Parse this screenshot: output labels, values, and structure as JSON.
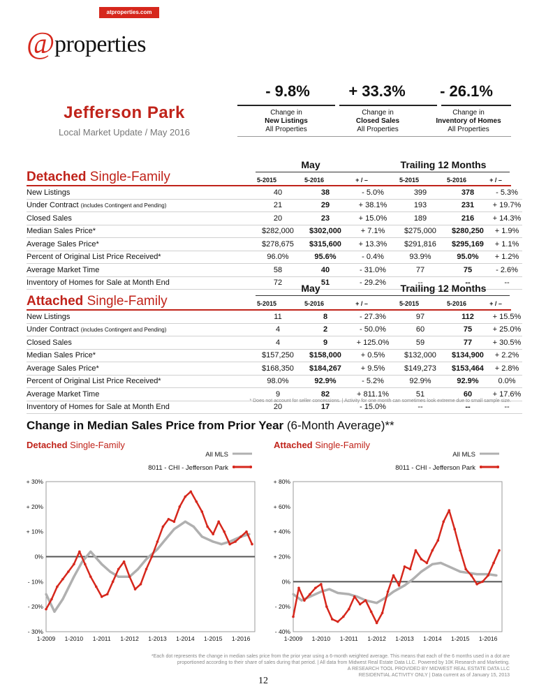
{
  "brand": {
    "tag": "atproperties.com",
    "logo_at": "@",
    "logo_word": "properties"
  },
  "area": {
    "name": "Jefferson Park",
    "subtitle": "Local Market Update / May 2016"
  },
  "headline_stats": [
    {
      "value": "- 9.8%",
      "line1": "Change in",
      "line2": "New Listings",
      "line3": "All Properties"
    },
    {
      "value": "+ 33.3%",
      "line1": "Change in",
      "line2": "Closed Sales",
      "line3": "All Properties"
    },
    {
      "value": "- 26.1%",
      "line1": "Change in",
      "line2": "Inventory of Homes",
      "line3": "All Properties"
    }
  ],
  "group_headers": {
    "month": "May",
    "trailing": "Trailing 12 Months"
  },
  "col_headers": [
    "5-2015",
    "5-2016",
    "+ / –",
    "5-2015",
    "5-2016",
    "+ / –"
  ],
  "detached": {
    "title_bold": "Detached",
    "title_rest": " Single-Family",
    "rows": [
      {
        "label": "New Listings",
        "small": "",
        "v": [
          "40",
          "38",
          "- 5.0%",
          "399",
          "378",
          "- 5.3%"
        ]
      },
      {
        "label": "Under Contract ",
        "small": "(includes Contingent and Pending)",
        "v": [
          "21",
          "29",
          "+ 38.1%",
          "193",
          "231",
          "+ 19.7%"
        ]
      },
      {
        "label": "Closed Sales",
        "small": "",
        "v": [
          "20",
          "23",
          "+ 15.0%",
          "189",
          "216",
          "+ 14.3%"
        ]
      },
      {
        "label": "Median Sales Price*",
        "small": "",
        "v": [
          "$282,000",
          "$302,000",
          "+ 7.1%",
          "$275,000",
          "$280,250",
          "+ 1.9%"
        ]
      },
      {
        "label": "Average Sales Price*",
        "small": "",
        "v": [
          "$278,675",
          "$315,600",
          "+ 13.3%",
          "$291,816",
          "$295,169",
          "+ 1.1%"
        ]
      },
      {
        "label": "Percent of Original List Price Received*",
        "small": "",
        "v": [
          "96.0%",
          "95.6%",
          "- 0.4%",
          "93.9%",
          "95.0%",
          "+ 1.2%"
        ]
      },
      {
        "label": "Average Market Time",
        "small": "",
        "v": [
          "58",
          "40",
          "- 31.0%",
          "77",
          "75",
          "- 2.6%"
        ]
      },
      {
        "label": "Inventory of Homes for Sale at Month End",
        "small": "",
        "v": [
          "72",
          "51",
          "- 29.2%",
          "--",
          "--",
          "--"
        ]
      }
    ]
  },
  "attached": {
    "title_bold": "Attached",
    "title_rest": " Single-Family",
    "rows": [
      {
        "label": "New Listings",
        "small": "",
        "v": [
          "11",
          "8",
          "- 27.3%",
          "97",
          "112",
          "+ 15.5%"
        ]
      },
      {
        "label": "Under Contract ",
        "small": "(includes Contingent and Pending)",
        "v": [
          "4",
          "2",
          "- 50.0%",
          "60",
          "75",
          "+ 25.0%"
        ]
      },
      {
        "label": "Closed Sales",
        "small": "",
        "v": [
          "4",
          "9",
          "+ 125.0%",
          "59",
          "77",
          "+ 30.5%"
        ]
      },
      {
        "label": "Median Sales Price*",
        "small": "",
        "v": [
          "$157,250",
          "$158,000",
          "+ 0.5%",
          "$132,000",
          "$134,900",
          "+ 2.2%"
        ]
      },
      {
        "label": "Average Sales Price*",
        "small": "",
        "v": [
          "$168,350",
          "$184,267",
          "+ 9.5%",
          "$149,273",
          "$153,464",
          "+ 2.8%"
        ]
      },
      {
        "label": "Percent of Original List Price Received*",
        "small": "",
        "v": [
          "98.0%",
          "92.9%",
          "- 5.2%",
          "92.9%",
          "92.9%",
          "0.0%"
        ]
      },
      {
        "label": "Average Market Time",
        "small": "",
        "v": [
          "9",
          "82",
          "+ 811.1%",
          "51",
          "60",
          "+ 17.6%"
        ]
      },
      {
        "label": "Inventory of Homes for Sale at Month End",
        "small": "",
        "v": [
          "20",
          "17",
          "- 15.0%",
          "--",
          "--",
          "--"
        ]
      }
    ]
  },
  "table_note": "* Does not account for seller concessions.  |  Activity for one month can sometimes look extreme due to small sample size.",
  "charts_section": {
    "title_bold": "Change in Median Sales Price from Prior Year",
    "title_rest": " (6-Month Average)**"
  },
  "chart_data": [
    {
      "type": "line",
      "title_bold": "Detached",
      "title_rest": " Single-Family",
      "x_ticks": [
        "1-2009",
        "1-2010",
        "1-2011",
        "1-2012",
        "1-2013",
        "1-2014",
        "1-2015",
        "1-2016"
      ],
      "y_ticks": [
        "+ 30%",
        "+ 20%",
        "+ 10%",
        "0%",
        "- 10%",
        "- 20%",
        "- 30%"
      ],
      "ylim": [
        -30,
        30
      ],
      "xlim": [
        2009.0,
        2016.5
      ],
      "legend": [
        "All MLS",
        "8011 - CHI - Jefferson Park"
      ],
      "colors": {
        "all_mls": "#b0b0b0",
        "area": "#d6271c"
      },
      "series": [
        {
          "name": "All MLS",
          "x": [
            2009.0,
            2009.3,
            2009.6,
            2010.0,
            2010.3,
            2010.6,
            2011.0,
            2011.3,
            2011.6,
            2012.0,
            2012.3,
            2012.6,
            2013.0,
            2013.3,
            2013.6,
            2014.0,
            2014.3,
            2014.6,
            2015.0,
            2015.3,
            2015.6,
            2016.0,
            2016.3
          ],
          "y": [
            -15,
            -22,
            -17,
            -8,
            -2,
            2,
            -3,
            -6,
            -8,
            -8,
            -5,
            -1,
            3,
            7,
            11,
            14,
            12,
            8,
            6,
            5,
            6,
            8,
            9
          ]
        },
        {
          "name": "8011 - CHI - Jefferson Park",
          "x": [
            2009.0,
            2009.2,
            2009.4,
            2009.6,
            2009.8,
            2010.0,
            2010.2,
            2010.4,
            2010.6,
            2010.8,
            2011.0,
            2011.2,
            2011.4,
            2011.6,
            2011.8,
            2012.0,
            2012.2,
            2012.4,
            2012.6,
            2012.8,
            2013.0,
            2013.2,
            2013.4,
            2013.6,
            2013.8,
            2014.0,
            2014.2,
            2014.4,
            2014.6,
            2014.8,
            2015.0,
            2015.2,
            2015.4,
            2015.6,
            2015.8,
            2016.0,
            2016.2,
            2016.4
          ],
          "y": [
            -21,
            -17,
            -12,
            -9,
            -6,
            -3,
            2,
            -3,
            -8,
            -12,
            -16,
            -15,
            -10,
            -5,
            -2,
            -8,
            -13,
            -11,
            -5,
            0,
            6,
            12,
            15,
            14,
            20,
            24,
            26,
            22,
            18,
            12,
            9,
            14,
            10,
            5,
            6,
            8,
            10,
            5
          ]
        }
      ]
    },
    {
      "type": "line",
      "title_bold": "Attached",
      "title_rest": " Single-Family",
      "x_ticks": [
        "1-2009",
        "1-2010",
        "1-2011",
        "1-2012",
        "1-2013",
        "1-2014",
        "1-2015",
        "1-2016"
      ],
      "y_ticks": [
        "+ 80%",
        "+ 60%",
        "+ 40%",
        "+ 20%",
        "0%",
        "- 20%",
        "- 40%"
      ],
      "ylim": [
        -40,
        80
      ],
      "xlim": [
        2009.0,
        2016.5
      ],
      "legend": [
        "All MLS",
        "8011 - CHI - Jefferson Park"
      ],
      "colors": {
        "all_mls": "#b0b0b0",
        "area": "#d6271c"
      },
      "series": [
        {
          "name": "All MLS",
          "x": [
            2009.0,
            2009.3,
            2009.6,
            2010.0,
            2010.3,
            2010.6,
            2011.0,
            2011.3,
            2011.6,
            2012.0,
            2012.3,
            2012.6,
            2013.0,
            2013.3,
            2013.6,
            2014.0,
            2014.3,
            2014.6,
            2015.0,
            2015.3,
            2015.6,
            2016.0,
            2016.3
          ],
          "y": [
            -10,
            -15,
            -12,
            -8,
            -6,
            -9,
            -10,
            -12,
            -15,
            -17,
            -13,
            -8,
            -3,
            2,
            8,
            14,
            15,
            12,
            8,
            7,
            6,
            6,
            5
          ]
        },
        {
          "name": "8011 - CHI - Jefferson Park",
          "x": [
            2009.0,
            2009.2,
            2009.4,
            2009.6,
            2009.8,
            2010.0,
            2010.2,
            2010.4,
            2010.6,
            2010.8,
            2011.0,
            2011.2,
            2011.4,
            2011.6,
            2011.8,
            2012.0,
            2012.2,
            2012.4,
            2012.6,
            2012.8,
            2013.0,
            2013.2,
            2013.4,
            2013.6,
            2013.8,
            2014.0,
            2014.2,
            2014.4,
            2014.6,
            2014.8,
            2015.0,
            2015.2,
            2015.4,
            2015.6,
            2015.8,
            2016.0,
            2016.2,
            2016.4
          ],
          "y": [
            -28,
            -5,
            -15,
            -10,
            -5,
            -2,
            -20,
            -30,
            -32,
            -28,
            -22,
            -12,
            -18,
            -15,
            -24,
            -33,
            -25,
            -8,
            5,
            -3,
            12,
            10,
            25,
            18,
            15,
            25,
            33,
            48,
            57,
            42,
            25,
            10,
            5,
            -2,
            0,
            5,
            15,
            25
          ]
        }
      ]
    }
  ],
  "footnote": {
    "l1": "*Each dot represents the change in median sales price from the prior year using a 6-month weighted average. This means that each of the 6 months used in a dot are",
    "l2": "proportioned according to their share of sales during that period.  |  All data from Midwest Real Estate Data LLC. Powered by 10K Research and Marketing.",
    "l3": "A RESEARCH TOOL PROVIDED BY MIDWEST REAL ESTATE DATA LLC",
    "l4": "RESIDENTIAL ACTIVITY ONLY  |  Data current as of January 15, 2013"
  },
  "page_number": "12"
}
